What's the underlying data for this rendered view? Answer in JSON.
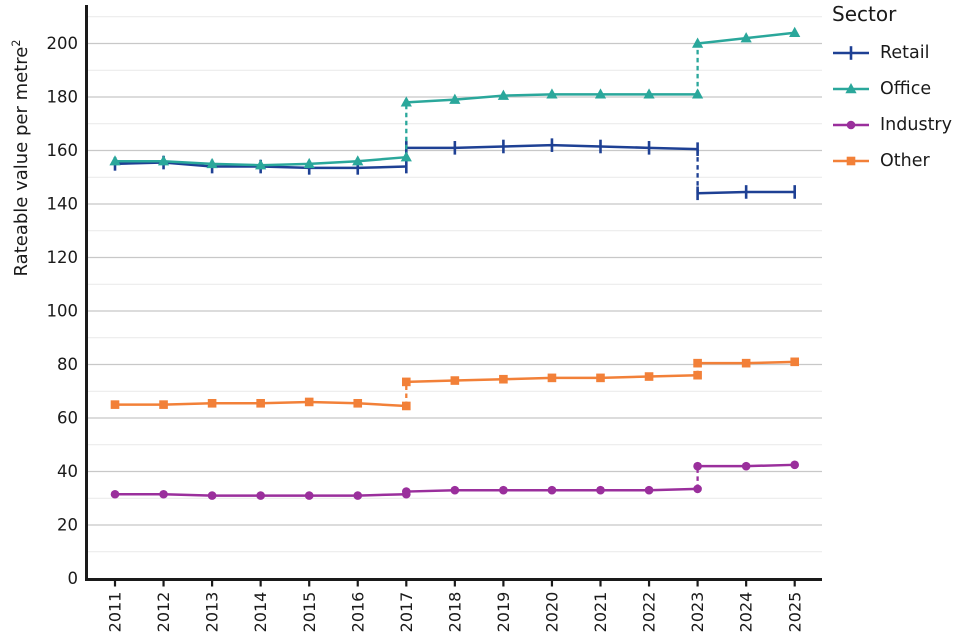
{
  "chart_data": {
    "type": "line",
    "title": "",
    "ylabel": "Rateable value per metre",
    "ylabel_superscript": "2",
    "xlabel": "",
    "legend_title": "Sector",
    "legend_position": "right",
    "grid": "horizontal",
    "x_years": [
      2011,
      2012,
      2013,
      2014,
      2015,
      2016,
      2017,
      2018,
      2019,
      2020,
      2021,
      2022,
      2023,
      2024,
      2025
    ],
    "ylim": [
      0,
      212
    ],
    "ytick_major_step": 20,
    "ytick_minor_step": 10,
    "revaluation_break_years": [
      2017,
      2023
    ],
    "colors": {
      "axis": "#1a1a1a",
      "text": "#1a1a1a",
      "grid_major": "#c8c8c8",
      "grid_minor": "#e9e9e9"
    },
    "series": [
      {
        "name": "Retail",
        "color": "#1e4094",
        "marker": "plus-tick",
        "segments": [
          {
            "years": [
              2011,
              2012,
              2013,
              2014,
              2015,
              2016,
              2017
            ],
            "values": [
              155,
              155.5,
              154,
              154,
              153.5,
              153.5,
              154
            ]
          },
          {
            "years": [
              2017,
              2018,
              2019,
              2020,
              2021,
              2022,
              2023
            ],
            "values": [
              161,
              161,
              161.5,
              162,
              161.5,
              161,
              160.5
            ]
          },
          {
            "years": [
              2023,
              2024,
              2025
            ],
            "values": [
              144,
              144.5,
              144.5
            ]
          }
        ]
      },
      {
        "name": "Office",
        "color": "#2aa79b",
        "marker": "triangle",
        "segments": [
          {
            "years": [
              2011,
              2012,
              2013,
              2014,
              2015,
              2016,
              2017
            ],
            "values": [
              156,
              156,
              155,
              154.5,
              155,
              156,
              157.5
            ]
          },
          {
            "years": [
              2017,
              2018,
              2019,
              2020,
              2021,
              2022,
              2023
            ],
            "values": [
              178,
              179,
              180.5,
              181,
              181,
              181,
              181
            ]
          },
          {
            "years": [
              2023,
              2024,
              2025
            ],
            "values": [
              200,
              202,
              204
            ]
          }
        ]
      },
      {
        "name": "Industry",
        "color": "#9a2f9c",
        "marker": "circle",
        "segments": [
          {
            "years": [
              2011,
              2012,
              2013,
              2014,
              2015,
              2016,
              2017
            ],
            "values": [
              31.5,
              31.5,
              31,
              31,
              31,
              31,
              31.5
            ]
          },
          {
            "years": [
              2017,
              2018,
              2019,
              2020,
              2021,
              2022,
              2023
            ],
            "values": [
              32.5,
              33,
              33,
              33,
              33,
              33,
              33.5
            ]
          },
          {
            "years": [
              2023,
              2024,
              2025
            ],
            "values": [
              42,
              42,
              42.5
            ]
          }
        ]
      },
      {
        "name": "Other",
        "color": "#f28038",
        "marker": "square",
        "segments": [
          {
            "years": [
              2011,
              2012,
              2013,
              2014,
              2015,
              2016,
              2017
            ],
            "values": [
              65,
              65,
              65.5,
              65.5,
              66,
              65.5,
              64.5
            ]
          },
          {
            "years": [
              2017,
              2018,
              2019,
              2020,
              2021,
              2022,
              2023
            ],
            "values": [
              73.5,
              74,
              74.5,
              75,
              75,
              75.5,
              76
            ]
          },
          {
            "years": [
              2023,
              2024,
              2025
            ],
            "values": [
              80.5,
              80.5,
              81
            ]
          }
        ]
      }
    ]
  }
}
